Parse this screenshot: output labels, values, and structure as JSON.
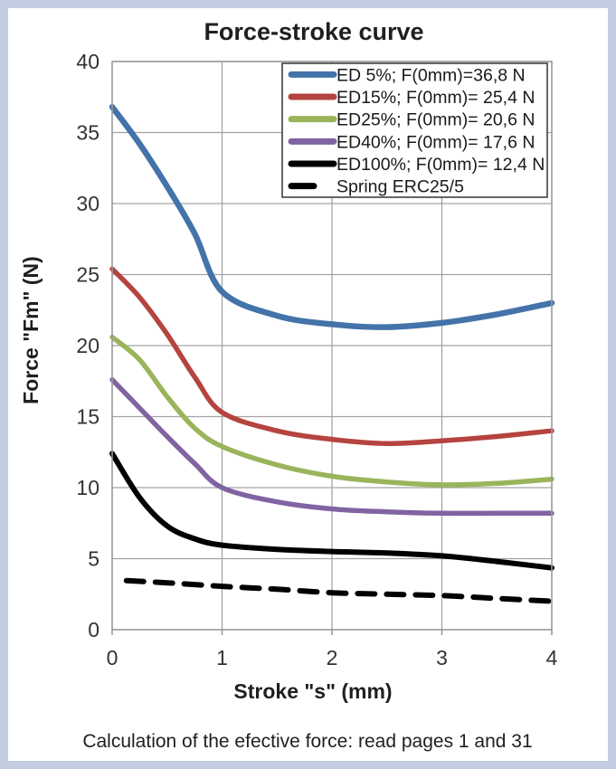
{
  "title": "Force-stroke curve",
  "caption": "Calculation of the efective force: read pages 1 and 31",
  "colors": {
    "frame_border": "#c2cde2",
    "gridline": "#a3a3a3",
    "plot_border": "#9a9a9a",
    "legend_border": "#404040",
    "background": "#ffffff"
  },
  "chart_data": {
    "type": "line",
    "title": "Force-stroke curve",
    "xlabel": "Stroke \"s\" (mm)",
    "ylabel": "Force \"Fm\" (N)",
    "xlim": [
      0,
      4
    ],
    "ylim": [
      0,
      40
    ],
    "x_ticks": [
      0,
      1,
      2,
      3,
      4
    ],
    "y_ticks": [
      0,
      5,
      10,
      15,
      20,
      25,
      30,
      35,
      40
    ],
    "grid": true,
    "legend_position": "top-right",
    "series": [
      {
        "name": "ED 5%; F(0mm)=36,8 N",
        "color": "#4373a9",
        "style": "solid",
        "width": 6.5,
        "x": [
          0,
          0.25,
          0.5,
          0.75,
          1,
          1.5,
          2,
          2.5,
          3,
          3.5,
          4
        ],
        "y": [
          36.8,
          34.2,
          31.2,
          27.9,
          23.8,
          22.1,
          21.5,
          21.3,
          21.6,
          22.2,
          23.0
        ]
      },
      {
        "name": "ED15%; F(0mm)= 25,4 N",
        "color": "#b5433e",
        "style": "solid",
        "width": 5.5,
        "x": [
          0,
          0.25,
          0.5,
          0.75,
          1,
          1.5,
          2,
          2.5,
          3,
          3.5,
          4
        ],
        "y": [
          25.4,
          23.4,
          20.8,
          17.8,
          15.3,
          14.0,
          13.4,
          13.1,
          13.3,
          13.6,
          14.0
        ]
      },
      {
        "name": "ED25%; F(0mm)= 20,6 N",
        "color": "#9ab45b",
        "style": "solid",
        "width": 5.5,
        "x": [
          0,
          0.25,
          0.5,
          0.75,
          1,
          1.5,
          2,
          2.5,
          3,
          3.5,
          4
        ],
        "y": [
          20.6,
          19.0,
          16.4,
          14.2,
          12.9,
          11.6,
          10.8,
          10.4,
          10.2,
          10.3,
          10.6
        ]
      },
      {
        "name": "ED40%; F(0mm)= 17,6 N",
        "color": "#8064a2",
        "style": "solid",
        "width": 5.5,
        "x": [
          0,
          0.25,
          0.5,
          0.75,
          1,
          1.5,
          2,
          2.5,
          3,
          3.5,
          4
        ],
        "y": [
          17.6,
          15.6,
          13.6,
          11.7,
          10.0,
          9.0,
          8.5,
          8.3,
          8.2,
          8.2,
          8.2
        ]
      },
      {
        "name": "ED100%; F(0mm)= 12,4 N",
        "color": "#000000",
        "style": "solid",
        "width": 6,
        "x": [
          0,
          0.25,
          0.5,
          0.75,
          1,
          1.5,
          2,
          2.5,
          3,
          3.5,
          4
        ],
        "y": [
          12.4,
          9.3,
          7.3,
          6.4,
          5.95,
          5.65,
          5.5,
          5.4,
          5.2,
          4.8,
          4.35
        ]
      },
      {
        "name": "Spring ERC25/5",
        "color": "#000000",
        "style": "dashed",
        "width": 6,
        "x": [
          0.13,
          0.5,
          1,
          1.5,
          2,
          2.5,
          3,
          3.5,
          4
        ],
        "y": [
          3.45,
          3.3,
          3.05,
          2.85,
          2.6,
          2.5,
          2.4,
          2.2,
          2.0
        ]
      }
    ]
  }
}
